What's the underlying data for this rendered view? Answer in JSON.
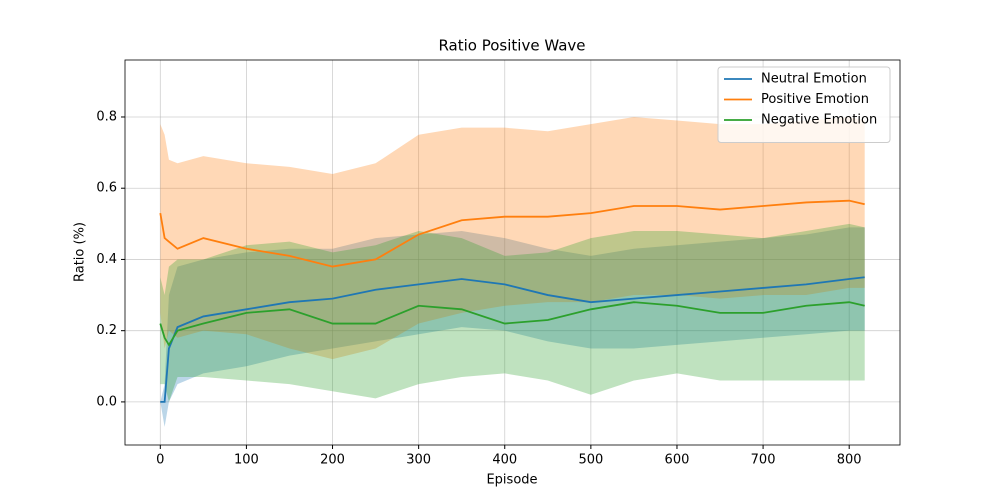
{
  "chart_data": {
    "type": "line",
    "title": "Ratio Positive Wave",
    "x_label": "Episode",
    "y_label": "Ratio (%)",
    "x": [
      0,
      5,
      10,
      20,
      50,
      100,
      150,
      200,
      250,
      300,
      350,
      400,
      450,
      500,
      550,
      600,
      650,
      700,
      750,
      800,
      818
    ],
    "series": [
      {
        "name": "Neutral Emotion",
        "color": "#1f77b4",
        "values": [
          0.0,
          0.0,
          0.15,
          0.21,
          0.24,
          0.26,
          0.28,
          0.29,
          0.315,
          0.33,
          0.345,
          0.33,
          0.3,
          0.28,
          0.29,
          0.3,
          0.31,
          0.32,
          0.33,
          0.345,
          0.35
        ],
        "lower": [
          0.0,
          -0.07,
          0.0,
          0.05,
          0.08,
          0.1,
          0.13,
          0.15,
          0.17,
          0.19,
          0.21,
          0.2,
          0.17,
          0.15,
          0.15,
          0.16,
          0.17,
          0.18,
          0.19,
          0.2,
          0.2
        ],
        "upper": [
          0.0,
          0.05,
          0.3,
          0.38,
          0.4,
          0.42,
          0.43,
          0.43,
          0.46,
          0.47,
          0.48,
          0.46,
          0.43,
          0.41,
          0.43,
          0.44,
          0.45,
          0.46,
          0.47,
          0.49,
          0.49
        ]
      },
      {
        "name": "Positive Emotion",
        "color": "#ff7f0e",
        "values": [
          0.53,
          0.46,
          0.45,
          0.43,
          0.46,
          0.43,
          0.41,
          0.38,
          0.4,
          0.47,
          0.51,
          0.52,
          0.52,
          0.53,
          0.55,
          0.55,
          0.54,
          0.55,
          0.56,
          0.565,
          0.555
        ],
        "lower": [
          0.25,
          0.15,
          0.2,
          0.18,
          0.2,
          0.19,
          0.15,
          0.12,
          0.15,
          0.22,
          0.25,
          0.27,
          0.28,
          0.28,
          0.3,
          0.3,
          0.29,
          0.3,
          0.3,
          0.32,
          0.32
        ],
        "upper": [
          0.78,
          0.75,
          0.68,
          0.67,
          0.69,
          0.67,
          0.66,
          0.64,
          0.67,
          0.75,
          0.77,
          0.77,
          0.76,
          0.78,
          0.8,
          0.79,
          0.78,
          0.78,
          0.79,
          0.8,
          0.79
        ]
      },
      {
        "name": "Negative Emotion",
        "color": "#2ca02c",
        "values": [
          0.22,
          0.18,
          0.16,
          0.2,
          0.22,
          0.25,
          0.26,
          0.22,
          0.22,
          0.27,
          0.26,
          0.22,
          0.23,
          0.26,
          0.28,
          0.27,
          0.25,
          0.25,
          0.27,
          0.28,
          0.27
        ],
        "lower": [
          0.05,
          0.05,
          0.0,
          0.07,
          0.07,
          0.06,
          0.05,
          0.03,
          0.01,
          0.05,
          0.07,
          0.08,
          0.06,
          0.02,
          0.06,
          0.08,
          0.06,
          0.06,
          0.06,
          0.06,
          0.06
        ],
        "upper": [
          0.35,
          0.3,
          0.38,
          0.4,
          0.4,
          0.44,
          0.45,
          0.42,
          0.44,
          0.48,
          0.46,
          0.41,
          0.42,
          0.46,
          0.48,
          0.48,
          0.47,
          0.46,
          0.48,
          0.5,
          0.49
        ]
      }
    ],
    "xlim": [
      -41,
      859
    ],
    "ylim": [
      -0.121,
      0.96
    ],
    "xticks": [
      0,
      100,
      200,
      300,
      400,
      500,
      600,
      700,
      800
    ],
    "yticks": [
      {
        "value": 0.0,
        "label": "0.0"
      },
      0.2,
      0.4,
      0.6,
      0.8
    ],
    "grid": true,
    "legend": "upper right",
    "band_opacity": 0.3
  }
}
